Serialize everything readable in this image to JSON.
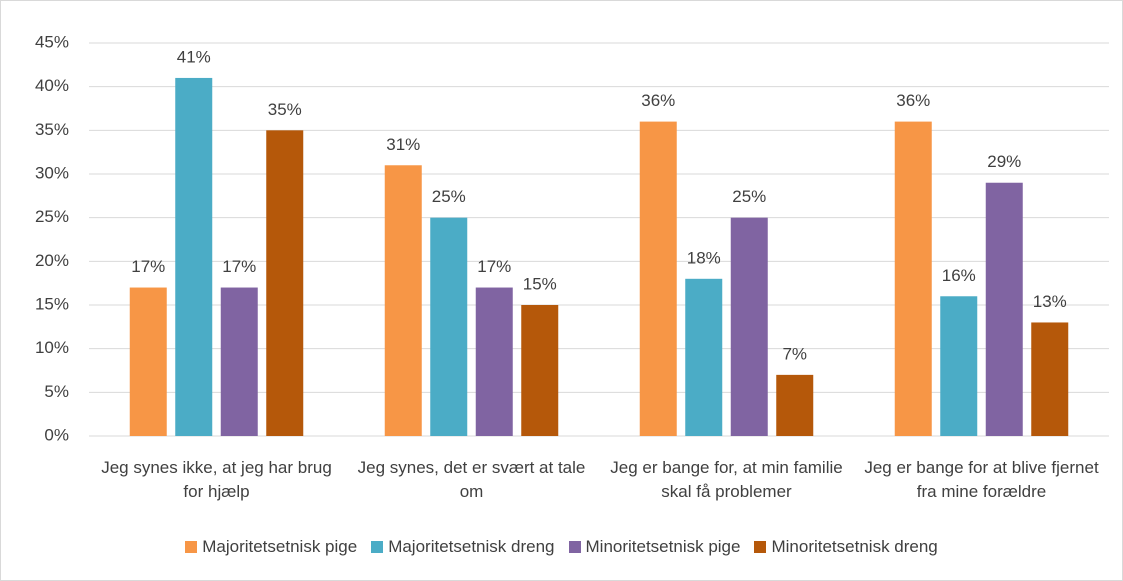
{
  "chart_data": {
    "type": "bar",
    "categories": [
      "Jeg synes ikke, at jeg har brug for hjælp",
      "Jeg synes, det er svært at tale om",
      "Jeg er bange for, at min familie skal få problemer",
      "Jeg er bange for at blive fjernet fra mine forældre"
    ],
    "series": [
      {
        "name": "Majoritetsetnisk pige",
        "color": "#f79646",
        "values": [
          17,
          31,
          36,
          36
        ],
        "value_labels": [
          "17%",
          "31%",
          "36%",
          "36%"
        ]
      },
      {
        "name": "Majoritetsetnisk dreng",
        "color": "#4bacc6",
        "values": [
          41,
          25,
          18,
          16
        ],
        "value_labels": [
          "41%",
          "25%",
          "18%",
          "16%"
        ]
      },
      {
        "name": "Minoritetsetnisk pige",
        "color": "#8064a2",
        "values": [
          17,
          17,
          25,
          29
        ],
        "value_labels": [
          "17%",
          "17%",
          "25%",
          "29%"
        ]
      },
      {
        "name": "Minoritetsetnisk dreng",
        "color": "#b5580a",
        "values": [
          35,
          15,
          7,
          13
        ],
        "value_labels": [
          "35%",
          "15%",
          "7%",
          "13%"
        ]
      }
    ],
    "ylim": [
      0,
      45
    ],
    "yticks": [
      {
        "value": 0,
        "label": "0%"
      },
      {
        "value": 5,
        "label": "5%"
      },
      {
        "value": 10,
        "label": "10%"
      },
      {
        "value": 15,
        "label": "15%"
      },
      {
        "value": 20,
        "label": "20%"
      },
      {
        "value": 25,
        "label": "25%"
      },
      {
        "value": 30,
        "label": "30%"
      },
      {
        "value": 35,
        "label": "35%"
      },
      {
        "value": 40,
        "label": "40%"
      },
      {
        "value": 45,
        "label": "45%"
      }
    ],
    "grid": true,
    "legend": "bottom"
  }
}
